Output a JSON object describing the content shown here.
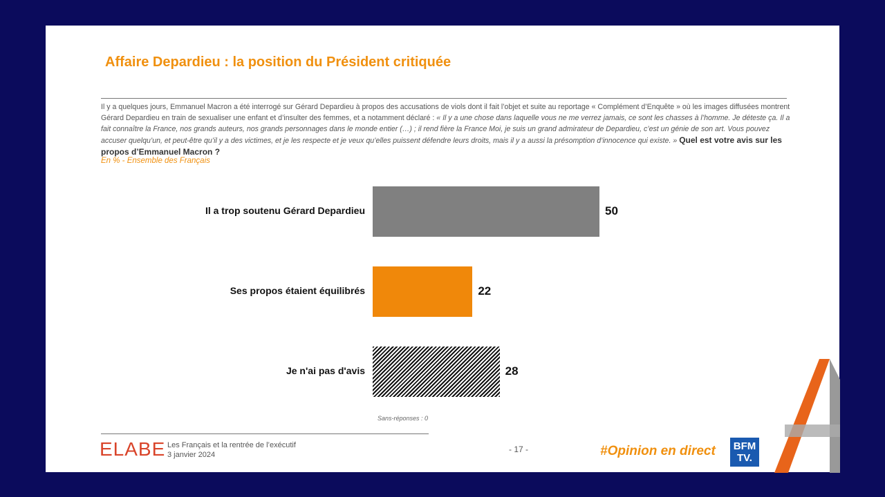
{
  "title": "Affaire Depardieu : la position du Président critiquée",
  "intro": {
    "text": "Il y a quelques jours, Emmanuel Macron a été interrogé sur Gérard Depardieu à propos des accusations de viols dont il fait l’objet et suite au reportage « Complément d’Enquête » où les images diffusées montrent Gérard Depardieu en train de sexualiser une enfant et d’insulter des femmes, et a notamment déclaré : ",
    "quote": "« Il y a une chose dans laquelle vous ne me verrez jamais, ce sont les chasses à l’homme. Je déteste ça. Il a fait connaître la France, nos grands auteurs, nos grands personnages dans le monde entier (…) ; il rend fière la France Moi, je suis un grand admirateur de Depardieu, c’est un génie de son art. Vous pouvez accuser quelqu’un, et peut-être qu’il y a des victimes, et je les respecte et je veux qu’elles puissent défendre leurs droits, mais il y a aussi la présomption d’innocence qui existe. »",
    "question": "Quel est votre avis sur les propos d’Emmanuel Macron ?"
  },
  "subtitle": "En % - Ensemble des Français",
  "chart_data": {
    "type": "bar",
    "orientation": "horizontal",
    "categories": [
      "Il a trop soutenu Gérard Depardieu",
      "Ses propos étaient équilibrés",
      "Je n'ai pas d'avis"
    ],
    "values": [
      50,
      22,
      28
    ],
    "colors": [
      "#808080",
      "#f0880a",
      "hatched"
    ],
    "note": "Sans-réponses : 0"
  },
  "footer": {
    "logo": "ELABE",
    "survey": "Les Français et la rentrée de l’exécutif",
    "date": "3 janvier 2024",
    "page": "- 17 -",
    "hashtag": "#Opinion en direct",
    "broadcaster": "BFM TV."
  }
}
